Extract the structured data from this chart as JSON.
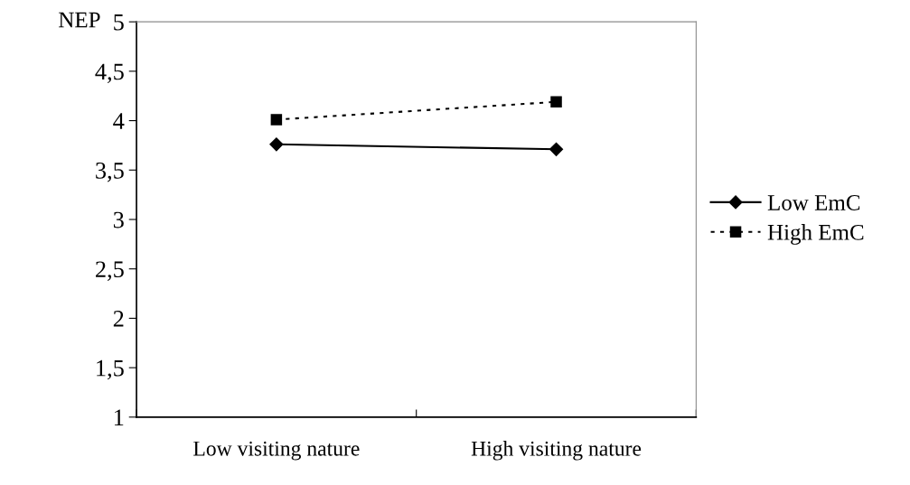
{
  "chart_data": {
    "type": "line",
    "ylabel": "NEP",
    "categories": [
      "Low visiting nature",
      "High visiting nature"
    ],
    "series": [
      {
        "name": "Low EmC",
        "color": "#000000",
        "values": [
          3.76,
          3.71
        ],
        "marker": "diamond",
        "line_style": "solid"
      },
      {
        "name": "High EmC",
        "color": "#000000",
        "values": [
          4.01,
          4.19
        ],
        "marker": "square",
        "line_style": "dotted"
      }
    ],
    "ylim": [
      1,
      5
    ],
    "yticks": [
      1,
      {
        "value": 1.5,
        "label": "1,5"
      },
      2,
      {
        "value": 2.5,
        "label": "2,5"
      },
      3,
      {
        "value": 3.5,
        "label": "3,5"
      },
      4,
      {
        "value": 4.5,
        "label": "4,5"
      },
      5
    ],
    "grid": false,
    "legend": "right"
  }
}
